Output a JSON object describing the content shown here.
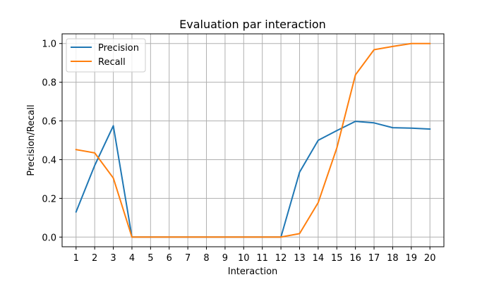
{
  "chart_data": {
    "type": "line",
    "title": "Evaluation par interaction",
    "xlabel": "Interaction",
    "ylabel": "Precision/Recall",
    "x": [
      1,
      2,
      3,
      4,
      5,
      6,
      7,
      8,
      9,
      10,
      11,
      12,
      13,
      14,
      15,
      16,
      17,
      18,
      19,
      20
    ],
    "xlim": [
      0.25,
      20.75
    ],
    "ylim": [
      -0.05,
      1.05
    ],
    "y_ticks": [
      0.0,
      0.2,
      0.4,
      0.6,
      0.8,
      1.0
    ],
    "y_tick_labels": [
      "0.0",
      "0.2",
      "0.4",
      "0.6",
      "0.8",
      "1.0"
    ],
    "grid": true,
    "legend_position": "top-left",
    "series": [
      {
        "name": "Precision",
        "color": "#1f77b4",
        "values": [
          0.13,
          0.37,
          0.575,
          0.0,
          0.0,
          0.0,
          0.0,
          0.0,
          0.0,
          0.0,
          0.0,
          0.0,
          0.335,
          0.5,
          0.55,
          0.598,
          0.59,
          0.565,
          0.563,
          0.558
        ]
      },
      {
        "name": "Recall",
        "color": "#ff7f0e",
        "values": [
          0.452,
          0.435,
          0.305,
          0.0,
          0.0,
          0.0,
          0.0,
          0.0,
          0.0,
          0.0,
          0.0,
          0.0,
          0.018,
          0.178,
          0.46,
          0.838,
          0.968,
          0.985,
          1.0,
          1.0
        ]
      }
    ]
  }
}
